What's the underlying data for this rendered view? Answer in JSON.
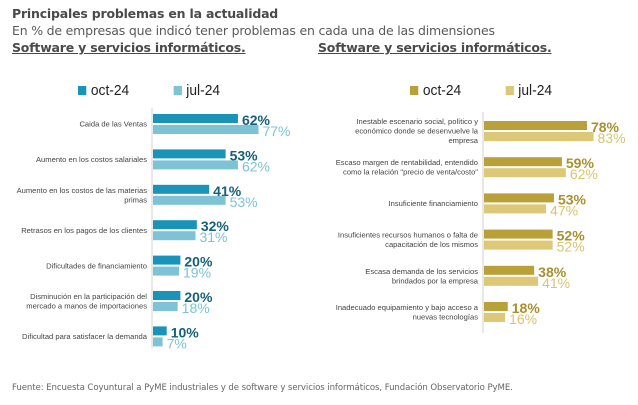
{
  "header": {
    "title": "Principales problemas en la actualidad",
    "subtitle": "En % de empresas que indicó tener problemas en cada una de las dimensiones",
    "section_left": "Software y servicios informáticos.",
    "section_right": "Software y servicios informáticos."
  },
  "footer": {
    "source": "Fuente: Encuesta Coyuntural a PyME industriales y de software y servicios informáticos, Fundación Observatorio PyME."
  },
  "colors": {
    "left_oct": "#1a93b8",
    "left_jul": "#7dc3d5",
    "left_oct_label": "#16617a",
    "left_jul_label": "#7dc3d5",
    "right_oct": "#b9a038",
    "right_jul": "#dcc877",
    "right_oct_label": "#a8902e",
    "right_jul_label": "#d8c470",
    "axis": "#d9d9d9"
  },
  "chart_data": [
    {
      "type": "bar",
      "orientation": "horizontal",
      "title": "Software y servicios informáticos.",
      "legend": [
        "oct-24",
        "jul-24"
      ],
      "legend_position": "top",
      "categories": [
        [
          "Caida de las Ventas"
        ],
        [
          "Aumento en los costos salariales"
        ],
        [
          "Aumento en los costos de las materias",
          "primas"
        ],
        [
          "Retrasos en los pagos de los clientes"
        ],
        [
          "Dificultades de financiamiento"
        ],
        [
          "Disminución en la participación del",
          "mercado a manos de importaciones"
        ],
        [
          "Dificultad para satisfacer la demanda"
        ]
      ],
      "series": [
        {
          "name": "oct-24",
          "values": [
            62,
            53,
            41,
            32,
            20,
            20,
            10
          ],
          "labels": [
            "62%",
            "53%",
            "41%",
            "32%",
            "20%",
            "20%",
            "10%"
          ]
        },
        {
          "name": "jul-24",
          "values": [
            77,
            62,
            53,
            31,
            19,
            18,
            7
          ],
          "labels": [
            "77%",
            "62%",
            "53%",
            "31%",
            "19%",
            "18%",
            "7%"
          ]
        }
      ],
      "xlim": [
        0,
        100
      ],
      "grid": false
    },
    {
      "type": "bar",
      "orientation": "horizontal",
      "title": "Software y servicios informáticos.",
      "legend": [
        "oct-24",
        "jul-24"
      ],
      "legend_position": "top",
      "categories": [
        [
          "Inestable escenario social, político y",
          "económico donde se desenvuelve la",
          "empresa"
        ],
        [
          "Escaso margen de rentabilidad, entendido",
          "como la relación \"precio de venta/costo\""
        ],
        [
          "Insuficiente financiamiento"
        ],
        [
          "Insuficientes recursos humanos o falta de",
          "capacitación de los mismos"
        ],
        [
          "Escasa demanda de los servicios",
          "brindados por la empresa"
        ],
        [
          "Inadecuado equipamiento y bajo acceso a",
          "nuevas tecnologías"
        ]
      ],
      "series": [
        {
          "name": "oct-24",
          "values": [
            78,
            59,
            53,
            52,
            38,
            18
          ],
          "labels": [
            "78%",
            "59%",
            "53%",
            "52%",
            "38%",
            "18%"
          ]
        },
        {
          "name": "jul-24",
          "values": [
            83,
            62,
            47,
            52,
            41,
            16
          ],
          "labels": [
            "83%",
            "62%",
            "47%",
            "52%",
            "41%",
            "16%"
          ]
        }
      ],
      "xlim": [
        0,
        100
      ],
      "grid": false
    }
  ]
}
